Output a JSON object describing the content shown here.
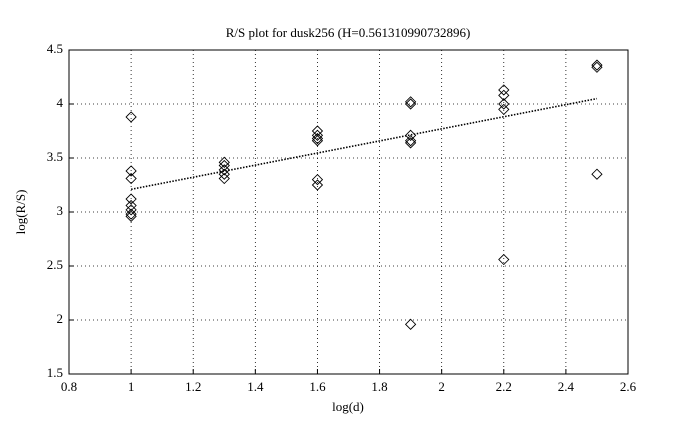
{
  "chart_data": {
    "type": "scatter",
    "title": "R/S plot for dusk256 (H=0.561310990732896)",
    "x_label": "log(d)",
    "y_label": "log(R/S)",
    "x": [
      1,
      1,
      1,
      1,
      1,
      1,
      1,
      1,
      1.3,
      1.3,
      1.3,
      1.3,
      1.3,
      1.6,
      1.6,
      1.6,
      1.6,
      1.6,
      1.6,
      1.9,
      1.9,
      1.9,
      1.9,
      1.9,
      1.9,
      2.2,
      2.2,
      2.2,
      2.2,
      2.2,
      2.5,
      2.5,
      2.5
    ],
    "values": [
      3.88,
      3.38,
      3.31,
      3.12,
      3.06,
      3.02,
      2.98,
      2.96,
      3.46,
      3.43,
      3.39,
      3.35,
      3.31,
      3.75,
      3.71,
      3.68,
      3.66,
      3.3,
      3.25,
      4.0,
      4.02,
      3.71,
      3.66,
      3.64,
      1.96,
      4.13,
      4.08,
      4.0,
      3.95,
      2.56,
      4.34,
      4.36,
      3.35
    ],
    "marker": "diamond",
    "color": "#000000",
    "fit_line": {
      "x": [
        1,
        2.5
      ],
      "values": [
        3.21,
        4.05
      ],
      "style": "dotted"
    },
    "xlim": [
      0.8,
      2.6
    ],
    "xticks": [
      0.8,
      1,
      1.2,
      1.4,
      1.6,
      1.8,
      2,
      2.2,
      2.4,
      2.6
    ],
    "ylim": [
      1.5,
      4.5
    ],
    "yticks": [
      1.5,
      2,
      2.5,
      3,
      3.5,
      4,
      4.5
    ],
    "grid": true
  }
}
